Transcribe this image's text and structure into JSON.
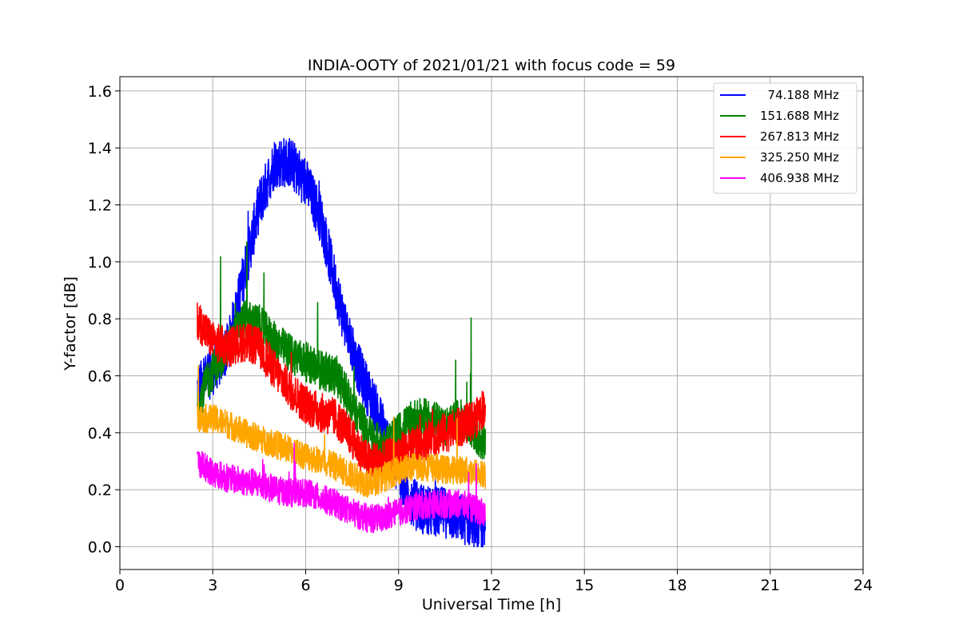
{
  "chart_data": {
    "type": "line",
    "title": "INDIA-OOTY of 2021/01/21 with focus code = 59",
    "xlabel": "Universal Time [h]",
    "ylabel": "Y-factor [dB]",
    "xlim": [
      0,
      24
    ],
    "ylim": [
      -0.08,
      1.65
    ],
    "xticks": [
      0,
      3,
      6,
      9,
      12,
      15,
      18,
      21,
      24
    ],
    "yticks": [
      0.0,
      0.2,
      0.4,
      0.6,
      0.8,
      1.0,
      1.2,
      1.4,
      1.6
    ],
    "grid": true,
    "legend_position": "top-right",
    "series": [
      {
        "name": "  74.188 MHz",
        "color": "#0000ff",
        "x": [
          2.5,
          3.0,
          3.5,
          4.0,
          4.5,
          5.0,
          5.5,
          6.0,
          6.5,
          7.0,
          7.5,
          8.0,
          8.5,
          9.0,
          9.5,
          10.0,
          10.5,
          11.0,
          11.5,
          11.8
        ],
        "y": [
          0.55,
          0.62,
          0.7,
          0.95,
          1.2,
          1.35,
          1.35,
          1.28,
          1.15,
          0.9,
          0.68,
          0.55,
          0.42,
          0.25,
          0.15,
          0.12,
          0.12,
          0.1,
          0.08,
          0.05
        ]
      },
      {
        "name": "151.688 MHz",
        "color": "#008000",
        "x": [
          2.5,
          3.0,
          3.5,
          4.0,
          4.5,
          5.0,
          5.5,
          6.0,
          6.5,
          7.0,
          7.5,
          8.0,
          8.5,
          9.0,
          9.5,
          10.0,
          10.5,
          11.0,
          11.5,
          11.8
        ],
        "y": [
          0.5,
          0.62,
          0.7,
          0.8,
          0.78,
          0.72,
          0.68,
          0.65,
          0.62,
          0.6,
          0.5,
          0.4,
          0.35,
          0.4,
          0.45,
          0.45,
          0.42,
          0.45,
          0.4,
          0.35
        ]
      },
      {
        "name": "267.813 MHz",
        "color": "#ff0000",
        "x": [
          2.5,
          3.0,
          3.5,
          4.0,
          4.5,
          5.0,
          5.5,
          6.0,
          6.5,
          7.0,
          7.5,
          8.0,
          8.5,
          9.0,
          9.5,
          10.0,
          10.5,
          11.0,
          11.5,
          11.8
        ],
        "y": [
          0.8,
          0.72,
          0.7,
          0.72,
          0.7,
          0.62,
          0.55,
          0.5,
          0.47,
          0.45,
          0.38,
          0.3,
          0.3,
          0.33,
          0.35,
          0.38,
          0.4,
          0.42,
          0.45,
          0.5
        ]
      },
      {
        "name": "325.250 MHz",
        "color": "#ffa500",
        "x": [
          2.5,
          3.0,
          3.5,
          4.0,
          4.5,
          5.0,
          5.5,
          6.0,
          6.5,
          7.0,
          7.5,
          8.0,
          8.5,
          9.0,
          9.5,
          10.0,
          10.5,
          11.0,
          11.5,
          11.8
        ],
        "y": [
          0.45,
          0.45,
          0.43,
          0.4,
          0.38,
          0.36,
          0.34,
          0.32,
          0.3,
          0.28,
          0.25,
          0.22,
          0.24,
          0.27,
          0.28,
          0.28,
          0.27,
          0.27,
          0.26,
          0.25
        ]
      },
      {
        "name": "406.938 MHz",
        "color": "#ff00ff",
        "x": [
          2.5,
          3.0,
          3.5,
          4.0,
          4.5,
          5.0,
          5.5,
          6.0,
          6.5,
          7.0,
          7.5,
          8.0,
          8.5,
          9.0,
          9.5,
          10.0,
          10.5,
          11.0,
          11.5,
          11.8
        ],
        "y": [
          0.3,
          0.26,
          0.24,
          0.23,
          0.22,
          0.2,
          0.19,
          0.19,
          0.17,
          0.15,
          0.12,
          0.1,
          0.1,
          0.12,
          0.14,
          0.15,
          0.15,
          0.15,
          0.13,
          0.12
        ]
      }
    ]
  }
}
